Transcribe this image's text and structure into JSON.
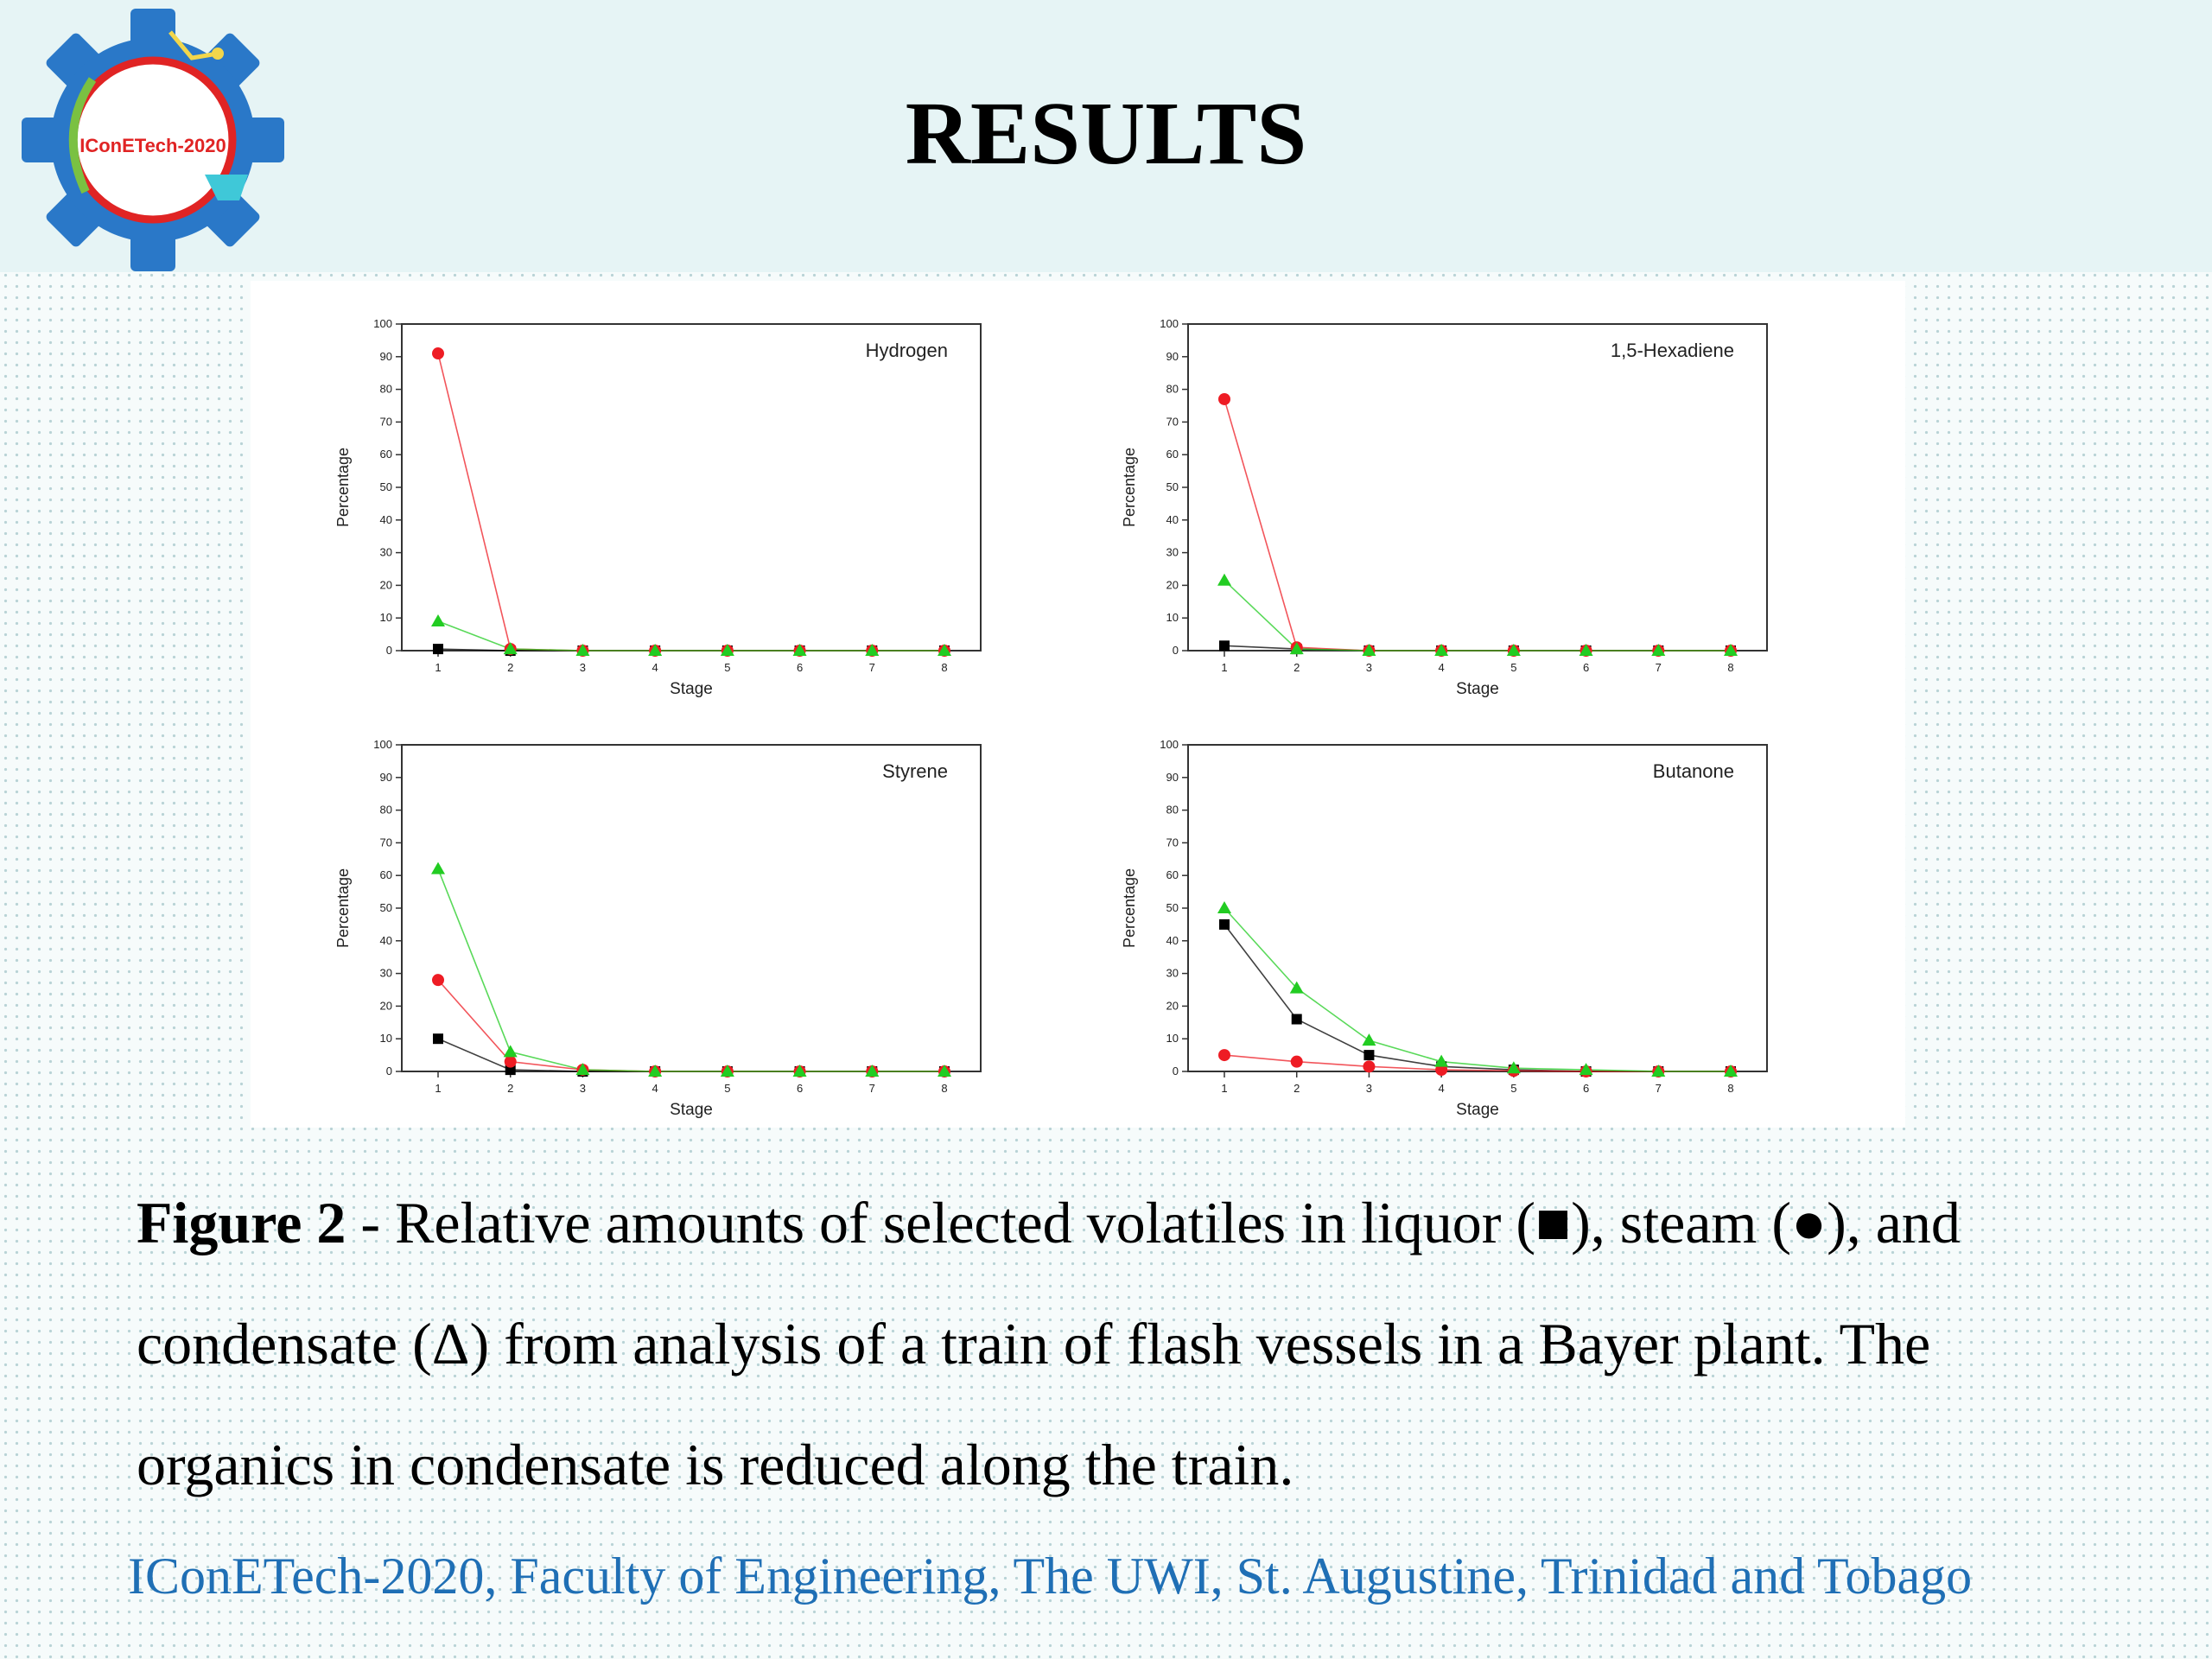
{
  "header": {
    "title": "RESULTS",
    "logo_text": "IConETech-2020"
  },
  "colors": {
    "liquor": "#000000",
    "steam": "#ee1c24",
    "condensate": "#22cc22",
    "footer_text": "#1f6fb5"
  },
  "chart_data": [
    {
      "type": "line",
      "title": "Hydrogen",
      "xlabel": "Stage",
      "ylabel": "Percentage",
      "x": [
        1,
        2,
        3,
        4,
        5,
        6,
        7,
        8
      ],
      "xlim": [
        1,
        8
      ],
      "ylim": [
        0,
        100
      ],
      "yticks": [
        0,
        10,
        20,
        30,
        40,
        50,
        60,
        70,
        80,
        90,
        100
      ],
      "series": [
        {
          "key": "liquor",
          "marker": "square",
          "values": [
            0.5,
            0,
            0,
            0,
            0,
            0,
            0,
            0
          ]
        },
        {
          "key": "steam",
          "marker": "circle",
          "values": [
            91,
            0.5,
            0,
            0,
            0,
            0,
            0,
            0
          ]
        },
        {
          "key": "condensate",
          "marker": "triangle",
          "values": [
            9,
            0.5,
            0,
            0,
            0,
            0,
            0,
            0
          ]
        }
      ]
    },
    {
      "type": "line",
      "title": "1,5-Hexadiene",
      "xlabel": "Stage",
      "ylabel": "Percentage",
      "x": [
        1,
        2,
        3,
        4,
        5,
        6,
        7,
        8
      ],
      "xlim": [
        1,
        8
      ],
      "ylim": [
        0,
        100
      ],
      "yticks": [
        0,
        10,
        20,
        30,
        40,
        50,
        60,
        70,
        80,
        90,
        100
      ],
      "series": [
        {
          "key": "liquor",
          "marker": "square",
          "values": [
            1.5,
            0.5,
            0,
            0,
            0,
            0,
            0,
            0
          ]
        },
        {
          "key": "steam",
          "marker": "circle",
          "values": [
            77,
            1,
            0,
            0,
            0,
            0,
            0,
            0
          ]
        },
        {
          "key": "condensate",
          "marker": "triangle",
          "values": [
            21.5,
            0.5,
            0,
            0,
            0,
            0,
            0,
            0
          ]
        }
      ]
    },
    {
      "type": "line",
      "title": "Styrene",
      "xlabel": "Stage",
      "ylabel": "Percentage",
      "x": [
        1,
        2,
        3,
        4,
        5,
        6,
        7,
        8
      ],
      "xlim": [
        1,
        8
      ],
      "ylim": [
        0,
        100
      ],
      "yticks": [
        0,
        10,
        20,
        30,
        40,
        50,
        60,
        70,
        80,
        90,
        100
      ],
      "series": [
        {
          "key": "liquor",
          "marker": "square",
          "values": [
            10,
            0.5,
            0,
            0,
            0,
            0,
            0,
            0
          ]
        },
        {
          "key": "steam",
          "marker": "circle",
          "values": [
            28,
            3,
            0.5,
            0,
            0,
            0,
            0,
            0
          ]
        },
        {
          "key": "condensate",
          "marker": "triangle",
          "values": [
            62,
            6,
            0.5,
            0,
            0,
            0,
            0,
            0
          ]
        }
      ]
    },
    {
      "type": "line",
      "title": "Butanone",
      "xlabel": "Stage",
      "ylabel": "Percentage",
      "x": [
        1,
        2,
        3,
        4,
        5,
        6,
        7,
        8
      ],
      "xlim": [
        1,
        8
      ],
      "ylim": [
        0,
        100
      ],
      "yticks": [
        0,
        10,
        20,
        30,
        40,
        50,
        60,
        70,
        80,
        90,
        100
      ],
      "series": [
        {
          "key": "liquor",
          "marker": "square",
          "values": [
            45,
            16,
            5,
            1.5,
            0.5,
            0,
            0,
            0
          ]
        },
        {
          "key": "steam",
          "marker": "circle",
          "values": [
            5,
            3,
            1.5,
            0.5,
            0.2,
            0,
            0,
            0
          ]
        },
        {
          "key": "condensate",
          "marker": "triangle",
          "values": [
            50,
            25.5,
            9.5,
            3,
            1,
            0.5,
            0,
            0
          ]
        }
      ]
    }
  ],
  "caption": {
    "figure_label": "Figure 2",
    "text": " - Relative amounts of selected volatiles in liquor (■), steam (●), and condensate (Δ) from analysis of a train of flash vessels in a Bayer plant. The organics in condensate is reduced along the train."
  },
  "footer": {
    "text": "IConETech-2020, Faculty of Engineering, The UWI, St. Augustine, Trinidad and Tobago"
  }
}
